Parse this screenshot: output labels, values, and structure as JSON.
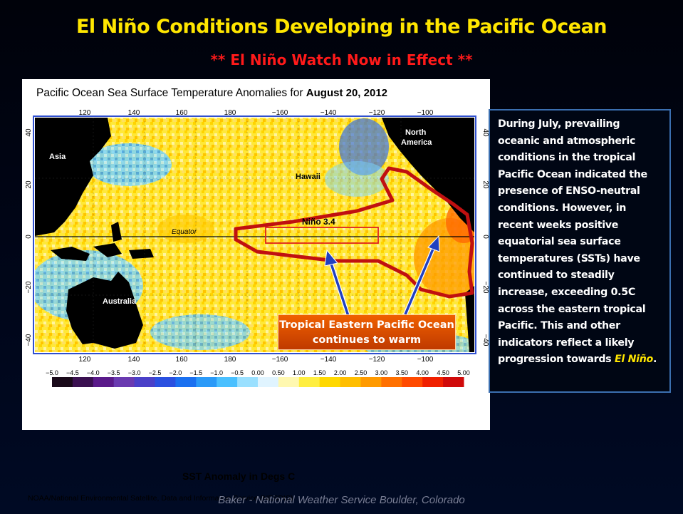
{
  "slide": {
    "title": "El Niño Conditions Developing in the Pacific Ocean",
    "subtitle": "** El Niño Watch Now in Effect **",
    "footer": "Baker - National Weather Service Boulder, Colorado"
  },
  "map": {
    "title_prefix": "Pacific Ocean Sea Surface Temperature Anomalies for ",
    "title_date": "August 20, 2012",
    "lon_labels": [
      "120",
      "140",
      "160",
      "180",
      "−160",
      "−140",
      "−120",
      "−100"
    ],
    "lat_labels": [
      "40",
      "20",
      "0",
      "−20",
      "−40"
    ],
    "region_labels": {
      "asia": "Asia",
      "north_america_1": "North",
      "north_america_2": "America",
      "hawaii": "Hawaii",
      "equator": "Equator",
      "australia": "Australia",
      "nino": "Niño 3.4"
    },
    "callout_line1": "Tropical Eastern Pacific Ocean",
    "callout_line2": "continues to warm",
    "legend_ticks": [
      "−5.0",
      "−4.5",
      "−4.0",
      "−3.5",
      "−3.0",
      "−2.5",
      "−2.0",
      "−1.5",
      "−1.0",
      "−0.5",
      "0.00",
      "0.50",
      "1.00",
      "1.50",
      "2.00",
      "2.50",
      "3.00",
      "3.50",
      "4.00",
      "4.50",
      "5.00"
    ],
    "legend_colors": [
      "#1a0a1a",
      "#3a1050",
      "#5a1a8a",
      "#6a3ab0",
      "#4a40c8",
      "#2a50e0",
      "#1a70f0",
      "#2a9af8",
      "#4ac0ff",
      "#9ae0ff",
      "#e0f4ff",
      "#fff8b0",
      "#ffee40",
      "#ffd800",
      "#ffbe00",
      "#ff9a00",
      "#ff7000",
      "#ff4a00",
      "#f02000",
      "#d00a0a"
    ],
    "legend_title": "SST Anomaly in Degs C",
    "credit": "NOAA/National Environmental Satellite, Data and Information Service (NESDIS)"
  },
  "description": {
    "body": "During July, prevailing oceanic and atmospheric conditions in the tropical Pacific Ocean indicated the presence of ENSO-neutral conditions.  However, in recent weeks positive equatorial sea surface temperatures (SSTs) have continued to steadily increase, exceeding 0.5C across the eastern tropical Pacific. This and other indicators reflect a likely progression towards ",
    "emphasis": "El Niño",
    "end": "."
  }
}
